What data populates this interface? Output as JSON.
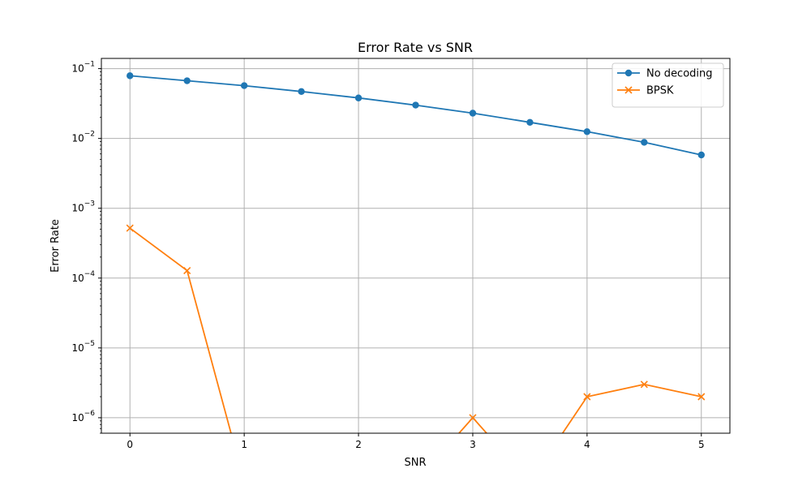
{
  "chart_data": {
    "type": "line",
    "title": "Error Rate vs SNR",
    "xlabel": "SNR",
    "ylabel": "Error Rate",
    "xscale": "linear",
    "yscale": "log",
    "xlim": [
      -0.25,
      5.25
    ],
    "ylim": [
      6e-07,
      0.14
    ],
    "xticks": [
      0,
      1,
      2,
      3,
      4,
      5
    ],
    "xtick_labels": [
      "0",
      "1",
      "2",
      "3",
      "4",
      "5"
    ],
    "yticks": [
      1e-06,
      1e-05,
      0.0001,
      0.001,
      0.01,
      0.1
    ],
    "ytick_labels": [
      {
        "base": "10",
        "exp": "−6"
      },
      {
        "base": "10",
        "exp": "−5"
      },
      {
        "base": "10",
        "exp": "−4"
      },
      {
        "base": "10",
        "exp": "−3"
      },
      {
        "base": "10",
        "exp": "−2"
      },
      {
        "base": "10",
        "exp": "−1"
      }
    ],
    "grid": true,
    "legend_position": "top-right",
    "x": [
      0,
      0.5,
      1,
      1.5,
      2,
      2.5,
      3,
      3.5,
      4,
      4.5,
      5
    ],
    "series": [
      {
        "name": "No decoding",
        "color": "#1f77b4",
        "marker": "circle",
        "values": [
          0.079,
          0.067,
          0.057,
          0.047,
          0.038,
          0.03,
          0.023,
          0.017,
          0.0125,
          0.0088,
          0.0058
        ]
      },
      {
        "name": "BPSK",
        "color": "#ff7f0e",
        "marker": "x",
        "values": [
          0.00052,
          0.000128,
          0,
          0,
          0,
          0,
          1e-06,
          0,
          2e-06,
          3e-06,
          2e-06
        ]
      }
    ]
  }
}
